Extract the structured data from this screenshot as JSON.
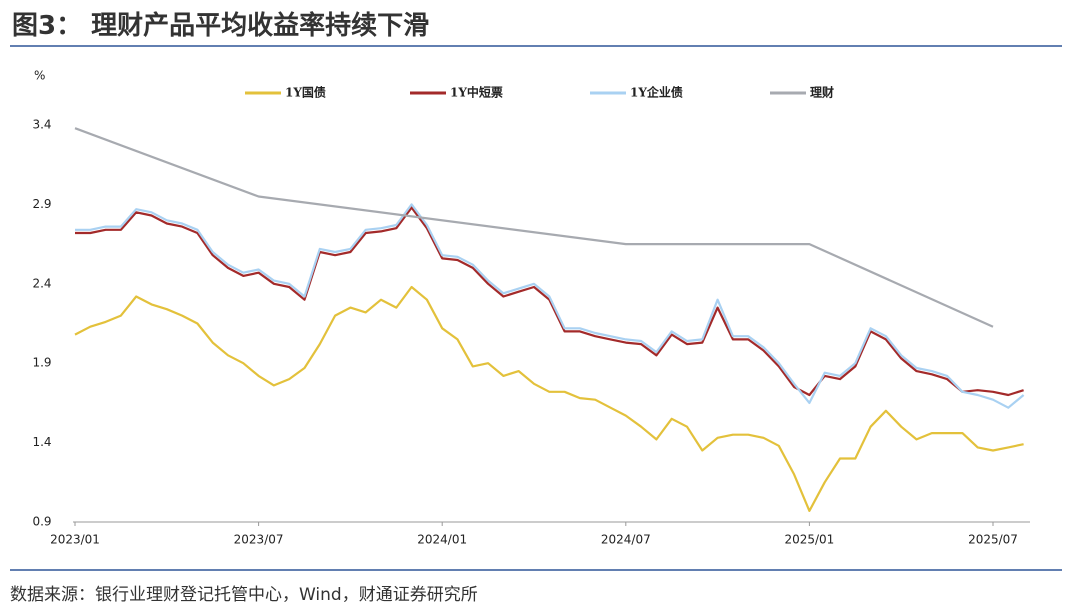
{
  "chart_data": {
    "type": "line",
    "title": "图3： 理财产品平均收益率持续下滑",
    "y_label": "%",
    "source": "数据来源：银行业理财登记托管中心，Wind，财通证券研究所",
    "categories": [
      "2023/01",
      null,
      null,
      null,
      null,
      null,
      null,
      null,
      null,
      null,
      null,
      null,
      "2023/07",
      null,
      null,
      null,
      null,
      null,
      null,
      null,
      null,
      null,
      null,
      null,
      "2024/01",
      null,
      null,
      null,
      null,
      null,
      null,
      null,
      null,
      null,
      null,
      null,
      "2024/07",
      null,
      null,
      null,
      null,
      null,
      null,
      null,
      null,
      null,
      null,
      null,
      "2025/01",
      null,
      null,
      null,
      null,
      null,
      null,
      null,
      null,
      null,
      null,
      null,
      "2025/07",
      null,
      null
    ],
    "ylim": [
      0.9,
      3.4
    ],
    "yticks": [
      0.9,
      1.4,
      1.9,
      2.4,
      2.9,
      3.4
    ],
    "series": [
      {
        "name": "1Y国债",
        "color": "#e3c13b",
        "values": [
          2.08,
          2.13,
          2.16,
          2.2,
          2.32,
          2.27,
          2.24,
          2.2,
          2.15,
          2.03,
          1.95,
          1.9,
          1.82,
          1.76,
          1.8,
          1.87,
          2.02,
          2.2,
          2.25,
          2.22,
          2.3,
          2.25,
          2.38,
          2.3,
          2.12,
          2.05,
          1.88,
          1.9,
          1.82,
          1.85,
          1.77,
          1.72,
          1.72,
          1.68,
          1.67,
          1.62,
          1.57,
          1.5,
          1.42,
          1.55,
          1.5,
          1.35,
          1.43,
          1.45,
          1.45,
          1.43,
          1.38,
          1.2,
          0.97,
          1.15,
          1.3,
          1.3,
          1.5,
          1.6,
          1.5,
          1.42,
          1.46,
          1.46,
          1.46,
          1.37,
          1.35,
          1.37,
          1.39
        ]
      },
      {
        "name": "1Y中短票",
        "color": "#a32a2a",
        "values": [
          2.72,
          2.72,
          2.74,
          2.74,
          2.85,
          2.83,
          2.78,
          2.76,
          2.72,
          2.58,
          2.5,
          2.45,
          2.47,
          2.4,
          2.38,
          2.3,
          2.6,
          2.58,
          2.6,
          2.72,
          2.73,
          2.75,
          2.88,
          2.75,
          2.56,
          2.55,
          2.5,
          2.4,
          2.32,
          2.35,
          2.38,
          2.3,
          2.1,
          2.1,
          2.07,
          2.05,
          2.03,
          2.02,
          1.95,
          2.08,
          2.02,
          2.03,
          2.25,
          2.05,
          2.05,
          1.98,
          1.88,
          1.75,
          1.7,
          1.82,
          1.8,
          1.88,
          2.1,
          2.05,
          1.93,
          1.85,
          1.83,
          1.8,
          1.72,
          1.73,
          1.72,
          1.7,
          1.73
        ]
      },
      {
        "name": "1Y企业债",
        "color": "#a9d1f2",
        "values": [
          2.74,
          2.74,
          2.76,
          2.76,
          2.87,
          2.85,
          2.8,
          2.78,
          2.74,
          2.6,
          2.52,
          2.47,
          2.49,
          2.42,
          2.4,
          2.32,
          2.62,
          2.6,
          2.62,
          2.74,
          2.75,
          2.77,
          2.9,
          2.77,
          2.58,
          2.57,
          2.52,
          2.42,
          2.34,
          2.37,
          2.4,
          2.32,
          2.12,
          2.12,
          2.09,
          2.07,
          2.05,
          2.04,
          1.97,
          2.1,
          2.04,
          2.05,
          2.3,
          2.07,
          2.07,
          2.0,
          1.9,
          1.77,
          1.65,
          1.84,
          1.82,
          1.9,
          2.12,
          2.07,
          1.95,
          1.87,
          1.85,
          1.82,
          1.72,
          1.7,
          1.67,
          1.62,
          1.7
        ]
      },
      {
        "name": "理财",
        "color": "#a7aab0",
        "x": [
          "2023/01",
          "2023/07",
          "2024/07",
          "2025/01",
          "2025/07"
        ],
        "values": [
          3.38,
          2.95,
          2.65,
          2.65,
          2.13
        ]
      }
    ]
  }
}
